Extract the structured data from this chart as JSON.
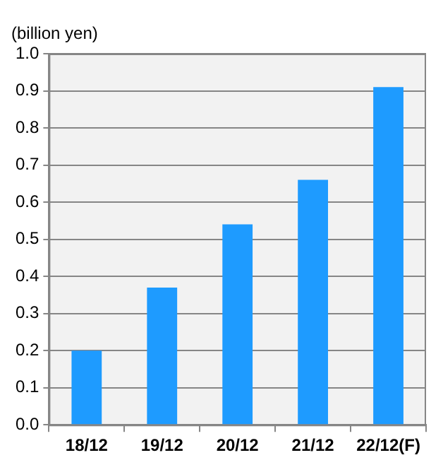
{
  "chart_data": {
    "type": "bar",
    "ylabel": "(billion yen)",
    "categories": [
      "18/12",
      "19/12",
      "20/12",
      "21/12",
      "22/12(F)"
    ],
    "values": [
      0.2,
      0.37,
      0.54,
      0.66,
      0.91
    ],
    "color": "#1e9bff",
    "ylim": [
      0,
      1
    ],
    "yticks": [
      {
        "value": 0,
        "label": "0.0"
      },
      {
        "value": 0.1,
        "label": "0.1"
      },
      {
        "value": 0.2,
        "label": "0.2"
      },
      {
        "value": 0.3,
        "label": "0.3"
      },
      {
        "value": 0.4,
        "label": "0.4"
      },
      {
        "value": 0.5,
        "label": "0.5"
      },
      {
        "value": 0.6,
        "label": "0.6"
      },
      {
        "value": 0.7,
        "label": "0.7"
      },
      {
        "value": 0.8,
        "label": "0.8"
      },
      {
        "value": 0.9,
        "label": "0.9"
      },
      {
        "value": 1,
        "label": "1.0"
      }
    ],
    "grid": "y",
    "legend": false
  }
}
